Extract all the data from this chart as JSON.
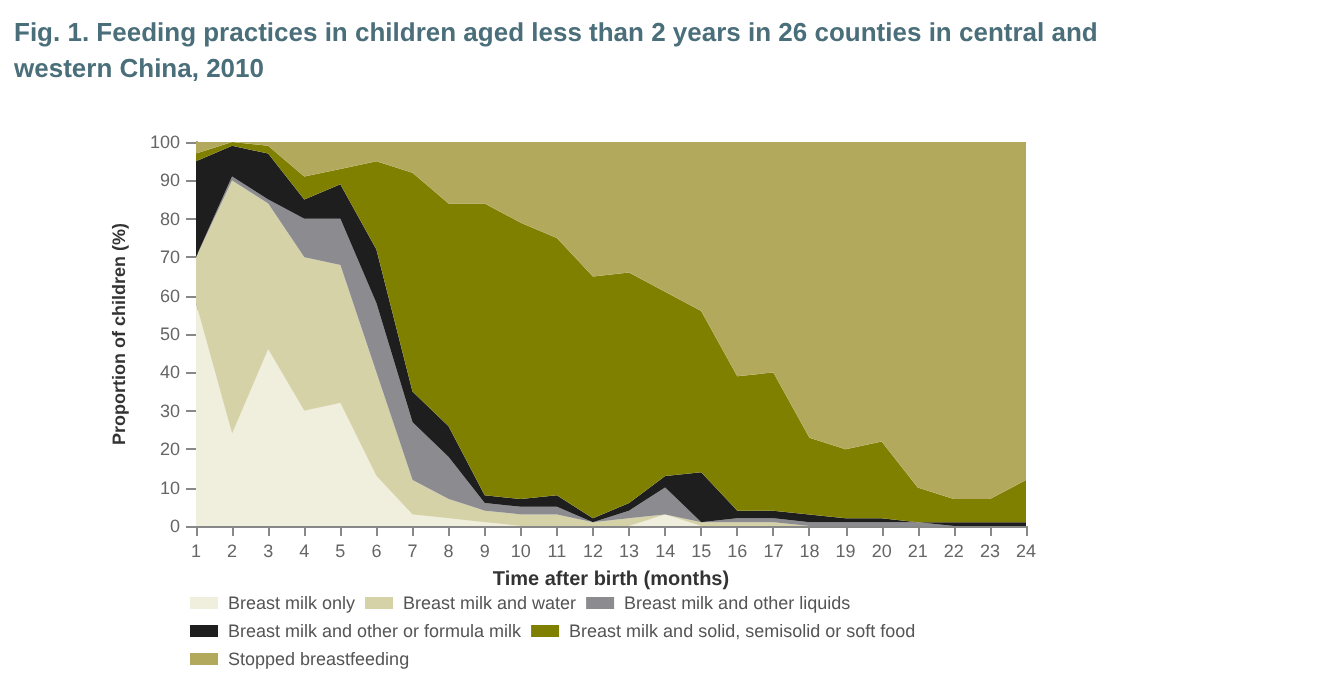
{
  "chart_data": {
    "type": "area",
    "stacked": true,
    "title": "Fig. 1. Feeding practices in children aged less than 2 years in 26 counties in central and\nwestern China, 2010",
    "xlabel": "Time after birth (months)",
    "ylabel": "Proportion of children (%)",
    "x": [
      1,
      2,
      3,
      4,
      5,
      6,
      7,
      8,
      9,
      10,
      11,
      12,
      13,
      14,
      15,
      16,
      17,
      18,
      19,
      20,
      21,
      22,
      23,
      24
    ],
    "xlim": [
      1,
      24
    ],
    "xticks": [
      1,
      2,
      3,
      4,
      5,
      6,
      7,
      8,
      9,
      10,
      11,
      12,
      13,
      14,
      15,
      16,
      17,
      18,
      19,
      20,
      21,
      22,
      23,
      24
    ],
    "ylim": [
      0,
      100
    ],
    "yticks": [
      0,
      10,
      20,
      30,
      40,
      50,
      60,
      70,
      80,
      90,
      100
    ],
    "grid": false,
    "legend": "bottom",
    "series": [
      {
        "name": "Breast milk only",
        "color": "#f0eedc",
        "values": [
          58,
          24,
          46,
          30,
          32,
          13,
          3,
          2,
          1,
          0,
          0,
          0,
          0,
          3,
          0,
          0,
          0,
          0,
          0,
          0,
          0,
          0,
          0,
          0
        ]
      },
      {
        "name": "Breast milk and water",
        "color": "#d6d2a8",
        "values": [
          12,
          66,
          38,
          40,
          36,
          27,
          9,
          5,
          3,
          3,
          3,
          1,
          2,
          0,
          1,
          1,
          1,
          0,
          0,
          0,
          0,
          0,
          0,
          0
        ]
      },
      {
        "name": "Breast milk and other liquids",
        "color": "#8c8c90",
        "values": [
          0,
          1,
          1,
          10,
          12,
          18,
          15,
          11,
          2,
          2,
          2,
          0,
          2,
          7,
          0,
          1,
          1,
          1,
          1,
          1,
          1,
          0,
          0,
          0
        ]
      },
      {
        "name": "Breast milk and other or formula milk",
        "color": "#1e1e1e",
        "values": [
          25,
          8,
          12,
          5,
          9,
          14,
          8,
          8,
          2,
          2,
          3,
          1,
          2,
          3,
          13,
          2,
          2,
          2,
          1,
          1,
          0,
          1,
          1,
          1
        ]
      },
      {
        "name": "Breast milk and solid, semisolid or soft food",
        "color": "#7f7f00",
        "values": [
          2,
          1,
          2,
          6,
          4,
          23,
          57,
          58,
          76,
          72,
          67,
          63,
          60,
          48,
          42,
          35,
          36,
          20,
          18,
          20,
          9,
          6,
          6,
          11
        ]
      },
      {
        "name": "Stopped breastfeeding",
        "color": "#b3a95c",
        "values": [
          3,
          0,
          1,
          9,
          7,
          5,
          8,
          16,
          16,
          21,
          25,
          35,
          34,
          39,
          44,
          61,
          60,
          77,
          80,
          78,
          90,
          93,
          93,
          88
        ]
      }
    ]
  }
}
